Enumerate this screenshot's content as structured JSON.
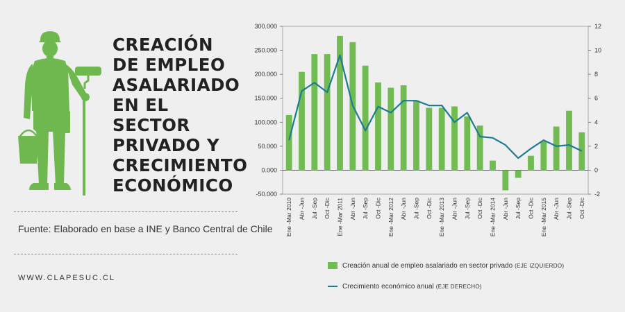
{
  "header": {
    "title_lines": [
      "CREACIÓN",
      "DE EMPLEO",
      "ASALARIADO",
      "EN EL SECTOR",
      "PRIVADO Y",
      "CRECIMIENTO",
      "ECONÓMICO"
    ]
  },
  "source": "Fuente: Elaborado en base a INE y Banco Central de Chile",
  "website": "WWW.CLAPESUC.CL",
  "illustration": {
    "icon": "worker-with-paint-roller-icon",
    "color": "#6fb84f"
  },
  "legend": {
    "bars_label": "Creación anual de empleo asalariado en sector privado",
    "bars_note": "(EJE IZQUIERDO)",
    "line_label": "Crecimiento económico anual",
    "line_note": "(EJE DERECHO)"
  },
  "chart_data": {
    "type": "bar",
    "categories": [
      "Ene -Mar 2010",
      "Abr -Jun",
      "Jul -Sep",
      "Oct -Dic",
      "Ene -Mar 2011",
      "Abr -Jun",
      "Jul -Sep",
      "Oct -Dic",
      "Ene -Mar 2012",
      "Abr -Jun",
      "Jul -Sep",
      "Oct -Dic",
      "Ene -Mar 2013",
      "Abr -Jun",
      "Jul -Sep",
      "Oct -Dic",
      "Ene -Mar 2014",
      "Abr -Jun",
      "Jul -Sep",
      "Oct -Dic",
      "Ene -Mar 2015",
      "Abr -Jun",
      "Jul -Sep",
      "Oct -Dic"
    ],
    "series": [
      {
        "name": "Creación anual de empleo asalariado en sector privado",
        "kind": "bar",
        "axis": "left",
        "color": "#72ba52",
        "values": [
          115000,
          205000,
          242000,
          242000,
          280000,
          267000,
          218000,
          183000,
          172000,
          177000,
          145000,
          130000,
          130000,
          133000,
          112000,
          93000,
          20000,
          -42000,
          -16000,
          30000,
          60000,
          91000,
          124000,
          79000
        ]
      },
      {
        "name": "Crecimiento económico anual",
        "kind": "line",
        "axis": "right",
        "color": "#1c7c91",
        "values": [
          2.5,
          6.6,
          7.3,
          6.5,
          9.6,
          5.4,
          3.3,
          5.3,
          4.8,
          5.8,
          5.8,
          5.4,
          5.4,
          4.0,
          4.8,
          2.8,
          2.7,
          2.1,
          1.0,
          1.8,
          2.5,
          2.0,
          2.1,
          1.6
        ]
      }
    ],
    "y_left": {
      "range": [
        -50000,
        300000
      ],
      "ticks": [
        -50000,
        0,
        50000,
        100000,
        150000,
        200000,
        250000,
        300000
      ],
      "tick_labels": [
        "-50.000",
        "0.000",
        "50.000",
        "100.000",
        "150.000",
        "200.000",
        "250.000",
        "300.000"
      ]
    },
    "y_right": {
      "range": [
        -2,
        12
      ],
      "ticks": [
        -2,
        0,
        2,
        4,
        6,
        8,
        10,
        12
      ],
      "tick_labels": [
        "-2",
        "0",
        "2",
        "4",
        "6",
        "8",
        "10",
        "12"
      ]
    },
    "grid": false,
    "legend_position": "bottom"
  }
}
